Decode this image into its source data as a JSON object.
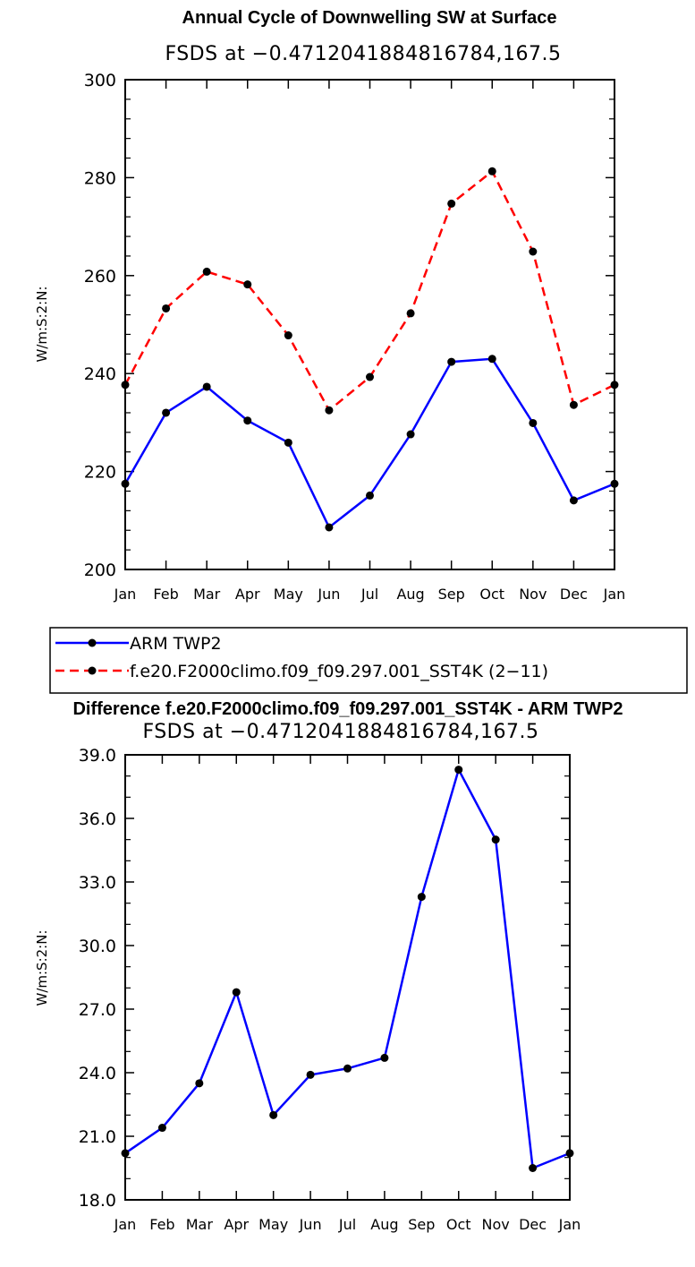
{
  "chart_data": [
    {
      "type": "line",
      "title": "Annual Cycle of Downwelling SW at Surface",
      "subtitle": "FSDS at −0.4712041884816784,167.5",
      "xlabel": "",
      "ylabel": "W/m:S:2:N:",
      "categories": [
        "Jan",
        "Feb",
        "Mar",
        "Apr",
        "May",
        "Jun",
        "Jul",
        "Aug",
        "Sep",
        "Oct",
        "Nov",
        "Dec",
        "Jan"
      ],
      "ylim": [
        200,
        300
      ],
      "yticks": [
        "200",
        "220",
        "240",
        "260",
        "280",
        "300"
      ],
      "series": [
        {
          "name": "ARM TWP2",
          "color": "#0000ff",
          "dash": "solid",
          "values": [
            217.5,
            232.0,
            237.3,
            230.4,
            225.9,
            208.6,
            215.1,
            227.6,
            242.4,
            243.0,
            229.9,
            214.1,
            217.5
          ]
        },
        {
          "name": "f.e20.F2000climo.f09_f09.297.001_SST4K (2−11)",
          "color": "#ff0000",
          "dash": "dashed",
          "values": [
            237.7,
            253.3,
            260.8,
            258.2,
            247.8,
            232.5,
            239.3,
            252.3,
            274.7,
            281.3,
            264.9,
            233.6,
            237.7
          ]
        }
      ],
      "legend": {
        "placement": "below",
        "entries": [
          "ARM TWP2",
          "f.e20.F2000climo.f09_f09.297.001_SST4K (2−11)"
        ]
      }
    },
    {
      "type": "line",
      "title": "Difference f.e20.F2000climo.f09_f09.297.001_SST4K - ARM TWP2",
      "subtitle": "FSDS at −0.4712041884816784,167.5",
      "xlabel": "",
      "ylabel": "W/m:S:2:N:",
      "categories": [
        "Jan",
        "Feb",
        "Mar",
        "Apr",
        "May",
        "Jun",
        "Jul",
        "Aug",
        "Sep",
        "Oct",
        "Nov",
        "Dec",
        "Jan"
      ],
      "ylim": [
        18.0,
        39.0
      ],
      "yticks": [
        "18.0",
        "21.0",
        "24.0",
        "27.0",
        "30.0",
        "33.0",
        "36.0",
        "39.0"
      ],
      "series": [
        {
          "name": "Difference",
          "color": "#0000ff",
          "dash": "solid",
          "values": [
            20.2,
            21.4,
            23.5,
            27.8,
            22.0,
            23.9,
            24.2,
            24.7,
            32.3,
            38.3,
            35.0,
            19.5,
            20.2
          ]
        }
      ]
    }
  ]
}
